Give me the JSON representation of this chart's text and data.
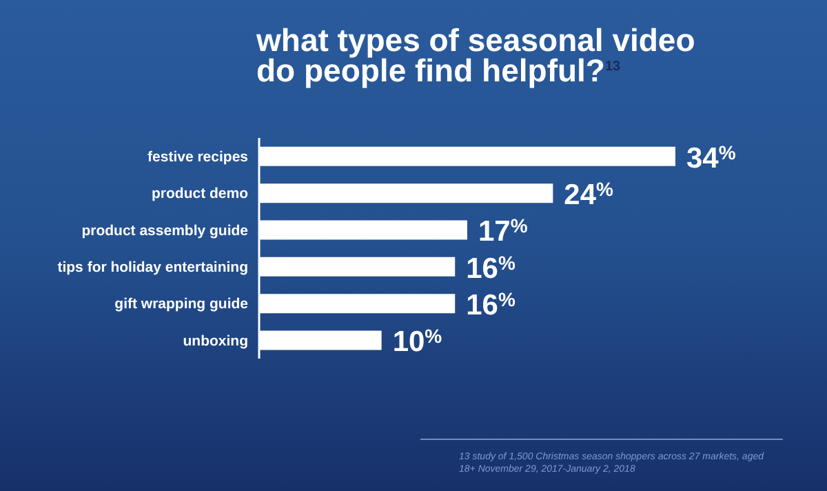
{
  "chart_data": {
    "type": "bar",
    "orientation": "horizontal",
    "title": "what types of seasonal video do people find helpful?$^{13}$",
    "categories": [
      "festive recipes",
      "product demo",
      "product assembly guide",
      "tips for holiday entertaining",
      "gift wrapping guide",
      "unboxing"
    ],
    "values": [
      34,
      24,
      17,
      16,
      16,
      10
    ],
    "value_labels": [
      "34$^{%}$",
      "24$^{%}$",
      "17$^{%}$",
      "16$^{%}$",
      "16$^{%}$",
      "10$^{%}$"
    ],
    "color": "#ffffff",
    "annotations": [
      "13 study of 1,500 Christmas season shoppers across 27 markets, aged 18+ November 29, 2017-January 2, 2018"
    ]
  }
}
